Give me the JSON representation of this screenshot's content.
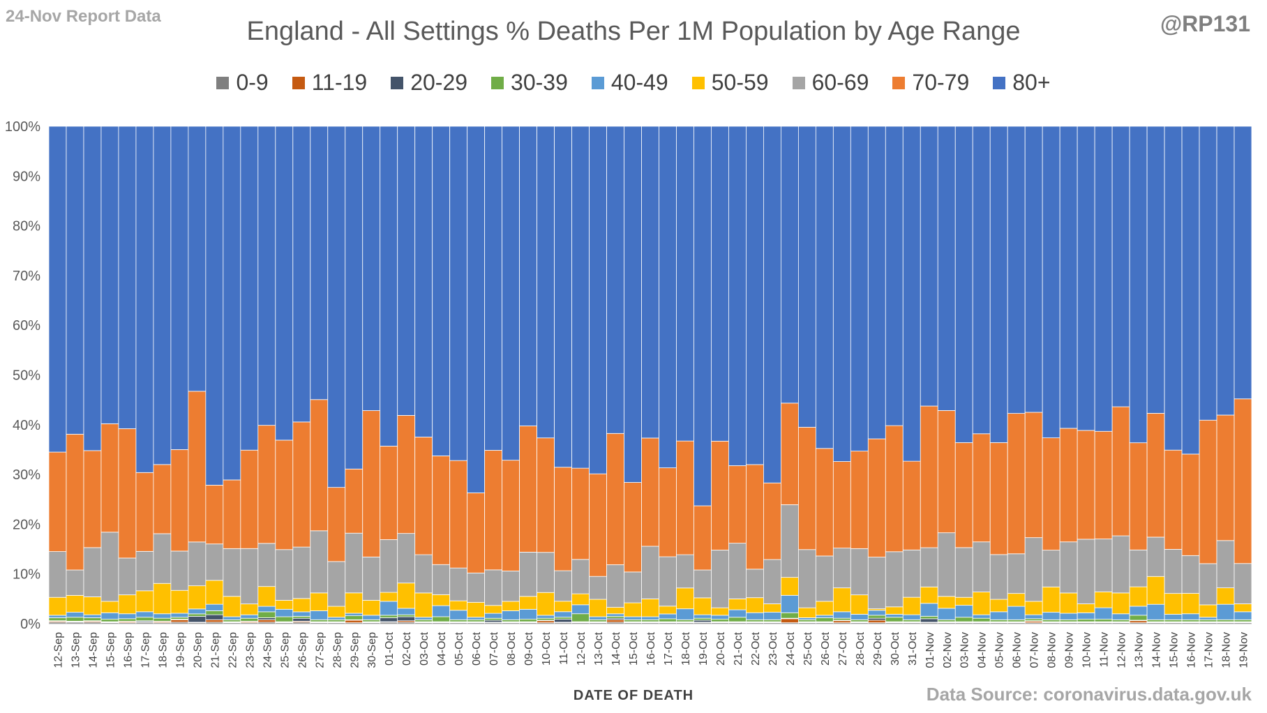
{
  "header": {
    "report_label": "24-Nov Report Data",
    "author": "@RP131",
    "source": "Data Source: coronavirus.data.gov.uk"
  },
  "chart_data": {
    "type": "bar",
    "stacked": true,
    "percent": true,
    "title": "England - All Settings % Deaths Per 1M Population by Age Range",
    "xlabel": "DATE OF DEATH",
    "ylabel": "",
    "ylim": [
      0,
      100
    ],
    "yticks": [
      "0%",
      "10%",
      "20%",
      "30%",
      "40%",
      "50%",
      "60%",
      "70%",
      "80%",
      "90%",
      "100%"
    ],
    "grid": false,
    "legend_position": "top",
    "categories": [
      "12-Sep",
      "13-Sep",
      "14-Sep",
      "15-Sep",
      "16-Sep",
      "17-Sep",
      "18-Sep",
      "19-Sep",
      "20-Sep",
      "21-Sep",
      "22-Sep",
      "23-Sep",
      "24-Sep",
      "25-Sep",
      "26-Sep",
      "27-Sep",
      "28-Sep",
      "29-Sep",
      "30-Sep",
      "01-Oct",
      "02-Oct",
      "03-Oct",
      "04-Oct",
      "05-Oct",
      "06-Oct",
      "07-Oct",
      "08-Oct",
      "09-Oct",
      "10-Oct",
      "11-Oct",
      "12-Oct",
      "13-Oct",
      "14-Oct",
      "15-Oct",
      "16-Oct",
      "17-Oct",
      "18-Oct",
      "19-Oct",
      "20-Oct",
      "21-Oct",
      "22-Oct",
      "23-Oct",
      "24-Oct",
      "25-Oct",
      "26-Oct",
      "27-Oct",
      "28-Oct",
      "29-Oct",
      "30-Oct",
      "31-Oct",
      "01-Nov",
      "02-Nov",
      "03-Nov",
      "04-Nov",
      "05-Nov",
      "06-Nov",
      "07-Nov",
      "08-Nov",
      "09-Nov",
      "10-Nov",
      "11-Nov",
      "12-Nov",
      "13-Nov",
      "14-Nov",
      "15-Nov",
      "16-Nov",
      "17-Nov",
      "18-Nov",
      "19-Nov"
    ],
    "series": [
      {
        "name": "0-9",
        "color": "#7f7f7f",
        "values": [
          0.3,
          0.3,
          0.3,
          0.2,
          0.2,
          0.3,
          0.2,
          0.3,
          0.2,
          0.3,
          0.2,
          0.2,
          0.3,
          0.2,
          0.3,
          0.2,
          0.2,
          0.2,
          0.2,
          0.3,
          0.3,
          0.2,
          0.2,
          0.2,
          0.2,
          0.2,
          0.2,
          0.2,
          0.2,
          0.2,
          0.2,
          0.2,
          0.3,
          0.2,
          0.2,
          0.2,
          0.2,
          0.2,
          0.2,
          0.2,
          0.2,
          0.2,
          0.2,
          0.2,
          0.2,
          0.2,
          0.2,
          0.2,
          0.2,
          0.2,
          0.2,
          0.2,
          0.2,
          0.2,
          0.2,
          0.2,
          0.2,
          0.2,
          0.2,
          0.2,
          0.2,
          0.2,
          0.2,
          0.2,
          0.2,
          0.2,
          0.2,
          0.2,
          0.2
        ]
      },
      {
        "name": "11-19",
        "color": "#c55a11",
        "values": [
          0.2,
          0.1,
          0.2,
          0.1,
          0.2,
          0.1,
          0.2,
          0.5,
          0.1,
          0.5,
          0.1,
          0.2,
          0.5,
          0.1,
          0.2,
          0.1,
          0.1,
          0.5,
          0.1,
          0.1,
          0.3,
          0.1,
          0.1,
          0.1,
          0.1,
          0.1,
          0.1,
          0.1,
          0.4,
          0.1,
          0.1,
          0.1,
          0.5,
          0.1,
          0.1,
          0.1,
          0.1,
          0.1,
          0.1,
          0.1,
          0.1,
          0.1,
          0.8,
          0.1,
          0.1,
          0.4,
          0.1,
          0.5,
          0.1,
          0.1,
          0.1,
          0.1,
          0.1,
          0.1,
          0.1,
          0.1,
          0.3,
          0.1,
          0.1,
          0.1,
          0.1,
          0.1,
          0.4,
          0.1,
          0.1,
          0.1,
          0.1,
          0.1,
          0.1
        ]
      },
      {
        "name": "20-29",
        "color": "#44546a",
        "values": [
          0.1,
          0.1,
          0.1,
          0.1,
          0.1,
          0.2,
          0.1,
          0.1,
          1.2,
          1.0,
          0.1,
          0.1,
          0.4,
          0.1,
          0.6,
          0.1,
          0.1,
          0.1,
          0.1,
          0.8,
          0.8,
          0.1,
          0.1,
          0.1,
          0.1,
          0.4,
          0.1,
          0.1,
          0.1,
          0.6,
          0.1,
          0.1,
          0.3,
          0.1,
          0.1,
          0.1,
          0.1,
          0.4,
          0.1,
          0.1,
          0.1,
          0.1,
          0.1,
          0.1,
          0.1,
          0.1,
          0.1,
          0.4,
          0.1,
          0.1,
          0.7,
          0.1,
          0.1,
          0.1,
          0.1,
          0.1,
          0.1,
          0.1,
          0.1,
          0.1,
          0.1,
          0.1,
          0.1,
          0.1,
          0.1,
          0.1,
          0.1,
          0.1,
          0.1
        ]
      },
      {
        "name": "30-39",
        "color": "#70ad47",
        "values": [
          0.6,
          0.8,
          0.6,
          0.5,
          0.5,
          0.7,
          0.6,
          0.4,
          0.5,
          0.8,
          0.4,
          0.6,
          1.2,
          1.0,
          0.4,
          0.4,
          0.4,
          0.8,
          0.4,
          0.5,
          0.4,
          0.4,
          1.0,
          0.4,
          0.4,
          0.4,
          0.4,
          0.5,
          0.4,
          0.4,
          1.6,
          0.4,
          0.4,
          0.4,
          0.4,
          0.6,
          0.4,
          0.4,
          0.5,
          0.9,
          0.4,
          0.4,
          1.1,
          0.4,
          0.8,
          0.4,
          0.4,
          0.6,
          0.9,
          0.4,
          0.5,
          0.4,
          0.9,
          0.7,
          0.4,
          0.4,
          0.4,
          0.4,
          0.4,
          0.5,
          0.5,
          0.4,
          1.0,
          0.4,
          0.4,
          0.4,
          0.4,
          0.4,
          0.4
        ]
      },
      {
        "name": "40-49",
        "color": "#5b9bd5",
        "values": [
          0.5,
          1.0,
          0.6,
          1.3,
          1.0,
          1.1,
          0.9,
          0.8,
          1.0,
          1.3,
          0.6,
          0.7,
          1.1,
          1.5,
          0.9,
          1.8,
          0.5,
          0.5,
          0.9,
          2.8,
          1.3,
          0.5,
          2.2,
          1.9,
          0.5,
          1.0,
          1.8,
          2.0,
          0.6,
          1.1,
          1.8,
          0.6,
          0.5,
          0.6,
          0.6,
          1.0,
          2.2,
          0.7,
          0.8,
          1.5,
          1.4,
          1.5,
          3.5,
          0.4,
          0.5,
          1.3,
          1.1,
          1.0,
          0.6,
          1.0,
          2.6,
          2.3,
          2.4,
          0.7,
          1.6,
          2.7,
          0.8,
          1.5,
          1.3,
          1.3,
          2.3,
          1.2,
          1.8,
          3.1,
          1.1,
          1.2,
          0.5,
          3.1,
          1.6
        ]
      },
      {
        "name": "50-59",
        "color": "#ffc000",
        "values": [
          3.6,
          3.4,
          3.6,
          2.3,
          3.8,
          4.2,
          6.1,
          4.6,
          4.7,
          4.8,
          4.1,
          2.2,
          4.0,
          1.8,
          2.7,
          3.6,
          2.2,
          4.1,
          3.0,
          1.8,
          5.1,
          4.9,
          2.2,
          1.9,
          3.0,
          1.6,
          1.9,
          2.6,
          4.6,
          2.1,
          2.2,
          3.5,
          1.3,
          2.8,
          3.6,
          1.6,
          4.2,
          3.4,
          1.5,
          2.2,
          3.0,
          1.7,
          3.6,
          2.0,
          2.8,
          4.8,
          3.9,
          0.3,
          1.5,
          3.5,
          3.3,
          2.4,
          1.6,
          4.6,
          2.5,
          2.6,
          2.7,
          5.1,
          4.1,
          1.8,
          3.2,
          4.2,
          3.9,
          5.6,
          4.2,
          4.1,
          2.5,
          3.3,
          1.6
        ]
      },
      {
        "name": "60-69",
        "color": "#a5a5a5",
        "values": [
          9.2,
          5.1,
          9.9,
          13.9,
          7.4,
          7.9,
          10.0,
          7.9,
          8.9,
          7.3,
          9.6,
          11.2,
          8.7,
          10.2,
          10.4,
          12.5,
          9.0,
          12.0,
          8.7,
          10.6,
          10.0,
          7.7,
          6.0,
          6.6,
          5.9,
          7.2,
          6.1,
          8.9,
          8.1,
          6.1,
          6.9,
          4.6,
          8.6,
          6.2,
          10.6,
          10.1,
          6.7,
          5.6,
          11.6,
          11.2,
          5.7,
          8.9,
          14.6,
          11.7,
          9.1,
          8.0,
          9.3,
          10.4,
          11.1,
          9.5,
          7.9,
          12.8,
          10.0,
          10.1,
          9.0,
          8.0,
          12.8,
          7.4,
          10.3,
          13.0,
          10.6,
          11.5,
          7.4,
          7.9,
          8.9,
          7.6,
          8.3,
          9.5,
          8.1
        ]
      },
      {
        "name": "70-79",
        "color": "#ed7d31",
        "values": [
          20.0,
          27.3,
          19.5,
          21.8,
          26.0,
          15.8,
          13.9,
          20.4,
          30.6,
          11.8,
          13.8,
          19.9,
          23.8,
          22.0,
          25.3,
          26.4,
          14.9,
          12.9,
          29.4,
          18.8,
          23.8,
          23.7,
          21.7,
          21.6,
          16.1,
          24.2,
          22.3,
          25.4,
          23.1,
          20.7,
          18.3,
          20.6,
          26.5,
          18.0,
          21.8,
          18.2,
          22.9,
          12.9,
          21.9,
          15.6,
          20.9,
          15.4,
          20.4,
          24.6,
          21.6,
          17.4,
          19.6,
          23.8,
          25.4,
          17.8,
          28.5,
          24.6,
          21.1,
          21.8,
          22.5,
          28.3,
          25.2,
          22.6,
          22.9,
          21.9,
          21.6,
          26.0,
          21.5,
          24.9,
          20.0,
          20.4,
          28.9,
          25.2,
          33.1
        ]
      },
      {
        "name": "80+",
        "color": "#4472c4",
        "values": [
          65.5,
          61.9,
          65.2,
          59.8,
          60.8,
          69.4,
          68.0,
          65.0,
          53.8,
          72.0,
          71.1,
          65.5,
          60.3,
          63.1,
          59.8,
          55.0,
          72.6,
          68.9,
          57.1,
          64.3,
          58.3,
          62.6,
          65.8,
          67.2,
          73.7,
          65.6,
          67.2,
          60.3,
          62.9,
          68.2,
          68.6,
          69.8,
          62.0,
          71.6,
          62.8,
          69.9,
          63.4,
          76.3,
          63.3,
          68.3,
          67.6,
          71.7,
          55.6,
          60.5,
          64.7,
          67.4,
          65.3,
          62.9,
          60.3,
          67.2,
          56.3,
          57.2,
          63.6,
          62.0,
          63.6,
          57.9,
          57.5,
          62.7,
          60.9,
          61.2,
          61.2,
          56.5,
          63.5,
          57.7,
          65.3,
          65.9,
          59.2,
          58.0,
          54.8
        ]
      }
    ]
  }
}
